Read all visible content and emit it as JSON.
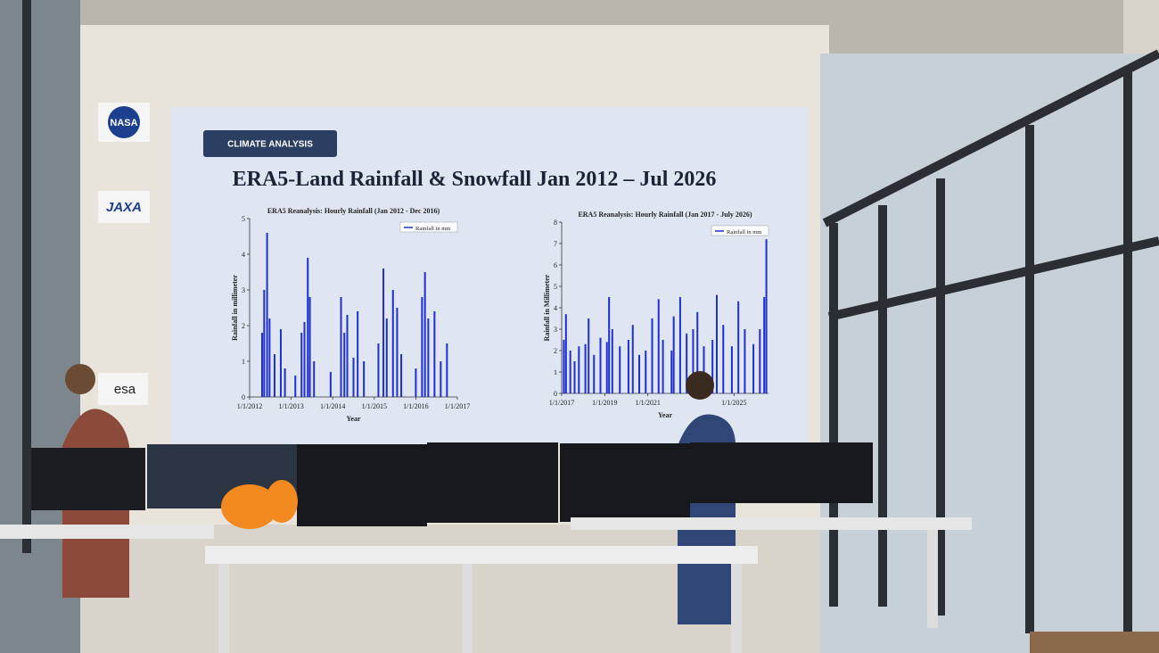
{
  "screen": {
    "badge": "CLIMATE ANALYSIS",
    "title": "ERA5-Land Rainfall & Snowfall  Jan 2012 – Jul 2026"
  },
  "logos": [
    "NASA",
    "JAXA",
    "esa"
  ],
  "chart_data": [
    {
      "type": "bar",
      "title": "ERA5 Reanalysis: Hourly Rainfall (Jan 2012 - Dec 2016)",
      "xlabel": "Year",
      "ylabel": "Rainfall in millimeter",
      "legend": "top-right",
      "xlim": [
        2012,
        2017
      ],
      "ylim": [
        0,
        5
      ],
      "xticks": [
        {
          "value": 2012,
          "label": "1/1/2012"
        },
        {
          "value": 2013,
          "label": "1/1/2013"
        },
        {
          "value": 2014,
          "label": "1/1/2014"
        },
        {
          "value": 2015,
          "label": "1/1/2015"
        },
        {
          "value": 2016,
          "label": "1/1/2016"
        },
        {
          "value": 2017,
          "label": "1/1/2017"
        }
      ],
      "yticks": [
        0,
        1,
        2,
        3,
        4,
        5
      ],
      "series": [
        {
          "name": "Rainfall in mm",
          "color": "#1f2fd0",
          "x": [
            2012.3,
            2012.35,
            2012.42,
            2012.48,
            2012.6,
            2012.75,
            2012.85,
            2013.1,
            2013.25,
            2013.32,
            2013.4,
            2013.45,
            2013.55,
            2013.95,
            2014.2,
            2014.28,
            2014.35,
            2014.5,
            2014.6,
            2014.75,
            2015.1,
            2015.22,
            2015.3,
            2015.45,
            2015.55,
            2015.65,
            2016.0,
            2016.15,
            2016.22,
            2016.3,
            2016.45,
            2016.6,
            2016.75
          ],
          "values": [
            1.8,
            3.0,
            4.6,
            2.2,
            1.2,
            1.9,
            0.8,
            0.6,
            1.8,
            2.1,
            3.9,
            2.8,
            1.0,
            0.7,
            2.8,
            1.8,
            2.3,
            1.1,
            2.4,
            1.0,
            1.5,
            3.6,
            2.2,
            3.0,
            2.5,
            1.2,
            0.8,
            2.8,
            3.5,
            2.2,
            2.4,
            1.0,
            1.5
          ]
        }
      ]
    },
    {
      "type": "bar",
      "title": "ERA5 Reanalysis: Hourly Rainfall (Jan 2017 - July 2026)",
      "xlabel": "Year",
      "ylabel": "Rainfall in Millimeter",
      "legend": "top-right",
      "xlim": [
        2017,
        2026.6
      ],
      "ylim": [
        0,
        8
      ],
      "xticks": [
        {
          "value": 2017,
          "label": "1/1/2017"
        },
        {
          "value": 2019,
          "label": "1/1/2019"
        },
        {
          "value": 2021,
          "label": "1/1/2021"
        },
        {
          "value": 2025,
          "label": "1/1/2025"
        }
      ],
      "yticks": [
        0,
        1,
        2,
        3,
        4,
        5,
        6,
        7,
        8
      ],
      "series": [
        {
          "name": "Rainfall in mm",
          "color": "#1f2fd0",
          "x": [
            2017.1,
            2017.2,
            2017.4,
            2017.6,
            2017.8,
            2018.1,
            2018.25,
            2018.5,
            2018.8,
            2019.1,
            2019.2,
            2019.35,
            2019.7,
            2020.1,
            2020.3,
            2020.6,
            2020.9,
            2021.2,
            2021.5,
            2021.7,
            2022.1,
            2022.2,
            2022.5,
            2022.8,
            2023.1,
            2023.3,
            2023.6,
            2024.0,
            2024.2,
            2024.5,
            2024.9,
            2025.2,
            2025.5,
            2025.9,
            2026.2,
            2026.4,
            2026.5
          ],
          "values": [
            2.5,
            3.7,
            2.0,
            1.5,
            2.2,
            2.3,
            3.5,
            1.8,
            2.6,
            2.4,
            4.5,
            3.0,
            2.2,
            2.5,
            3.2,
            1.8,
            2.0,
            3.5,
            4.4,
            2.5,
            2.0,
            3.6,
            4.5,
            2.8,
            3.0,
            3.8,
            2.2,
            2.5,
            4.6,
            3.2,
            2.2,
            4.3,
            3.0,
            2.3,
            3.0,
            4.5,
            7.2
          ]
        }
      ]
    }
  ]
}
